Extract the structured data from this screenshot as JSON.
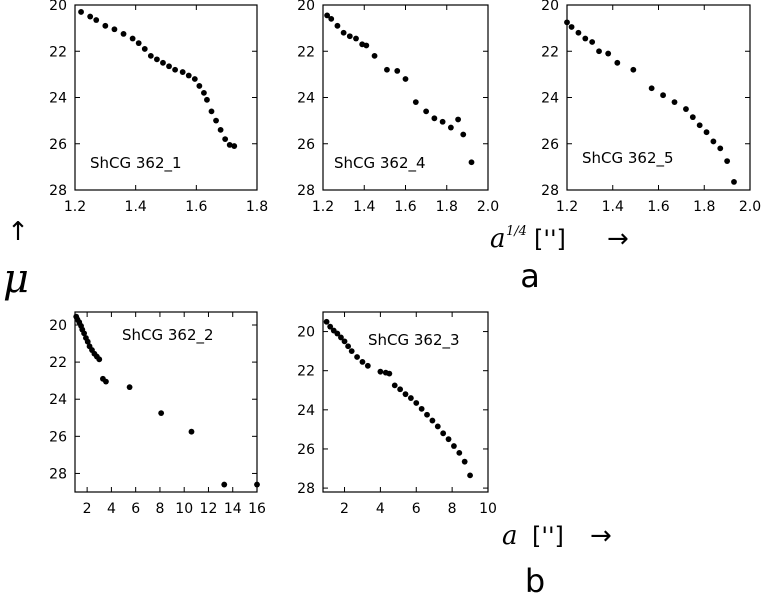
{
  "figure": {
    "y_axis_symbol": "μ",
    "y_axis_arrow": "↑",
    "top_row": {
      "x_axis_symbol": "a",
      "x_axis_exponent": "1/4",
      "x_axis_unit": "['']",
      "x_axis_arrow": "→",
      "group_letter": "a"
    },
    "bottom_row": {
      "x_axis_symbol": "a",
      "x_axis_unit": "['']",
      "x_axis_arrow": "→",
      "group_letter": "b"
    }
  },
  "chart_data": [
    {
      "type": "scatter",
      "label": "ShCG 362_1",
      "xlim": [
        1.2,
        1.8
      ],
      "ylim": [
        28,
        20
      ],
      "xticks": [
        1.2,
        1.4,
        1.6,
        1.8
      ],
      "xtick_labels": [
        "1.2",
        "1.4",
        "1.6",
        "1.8"
      ],
      "yticks": [
        20,
        22,
        24,
        26,
        28
      ],
      "ytick_labels": [
        "20",
        "22",
        "24",
        "26",
        "28"
      ],
      "x": [
        1.22,
        1.25,
        1.27,
        1.3,
        1.33,
        1.36,
        1.39,
        1.41,
        1.43,
        1.45,
        1.47,
        1.49,
        1.51,
        1.53,
        1.555,
        1.575,
        1.595,
        1.61,
        1.625,
        1.635,
        1.65,
        1.665,
        1.68,
        1.695,
        1.71,
        1.725
      ],
      "y": [
        20.3,
        20.5,
        20.65,
        20.9,
        21.05,
        21.25,
        21.45,
        21.65,
        21.9,
        22.2,
        22.35,
        22.5,
        22.65,
        22.8,
        22.9,
        23.05,
        23.2,
        23.5,
        23.8,
        24.1,
        24.6,
        25.0,
        25.4,
        25.8,
        26.05,
        26.1
      ]
    },
    {
      "type": "scatter",
      "label": "ShCG 362_4",
      "xlim": [
        1.2,
        2.0
      ],
      "ylim": [
        28,
        20
      ],
      "xticks": [
        1.2,
        1.4,
        1.6,
        1.8,
        2.0
      ],
      "xtick_labels": [
        "1.2",
        "1.4",
        "1.6",
        "1.8",
        "2.0"
      ],
      "yticks": [
        20,
        22,
        24,
        26,
        28
      ],
      "ytick_labels": [
        "20",
        "22",
        "24",
        "26",
        "28"
      ],
      "x": [
        1.22,
        1.24,
        1.27,
        1.3,
        1.33,
        1.36,
        1.39,
        1.41,
        1.45,
        1.51,
        1.56,
        1.6,
        1.65,
        1.7,
        1.74,
        1.78,
        1.82,
        1.855,
        1.88,
        1.92
      ],
      "y": [
        20.45,
        20.6,
        20.9,
        21.2,
        21.35,
        21.45,
        21.7,
        21.75,
        22.2,
        22.8,
        22.85,
        23.2,
        24.2,
        24.6,
        24.9,
        25.05,
        25.3,
        24.95,
        25.6,
        26.8
      ]
    },
    {
      "type": "scatter",
      "label": "ShCG 362_5",
      "xlim": [
        1.2,
        2.0
      ],
      "ylim": [
        28,
        20
      ],
      "xticks": [
        1.2,
        1.4,
        1.6,
        1.8,
        2.0
      ],
      "xtick_labels": [
        "1.2",
        "1.4",
        "1.6",
        "1.8",
        "2.0"
      ],
      "yticks": [
        20,
        22,
        24,
        26,
        28
      ],
      "ytick_labels": [
        "20",
        "22",
        "24",
        "26",
        "28"
      ],
      "x": [
        1.2,
        1.22,
        1.25,
        1.28,
        1.31,
        1.34,
        1.38,
        1.42,
        1.49,
        1.57,
        1.62,
        1.67,
        1.72,
        1.75,
        1.78,
        1.81,
        1.84,
        1.87,
        1.9,
        1.93
      ],
      "y": [
        20.75,
        20.95,
        21.2,
        21.45,
        21.6,
        22.0,
        22.1,
        22.5,
        22.8,
        23.6,
        23.9,
        24.2,
        24.5,
        24.85,
        25.2,
        25.5,
        25.9,
        26.2,
        26.75,
        27.65
      ]
    },
    {
      "type": "scatter",
      "label": "ShCG 362_2",
      "xlim": [
        1,
        16
      ],
      "ylim": [
        29,
        19.3
      ],
      "xticks": [
        2,
        4,
        6,
        8,
        10,
        12,
        14,
        16
      ],
      "xtick_labels": [
        "2",
        "4",
        "6",
        "8",
        "10",
        "12",
        "14",
        "16"
      ],
      "yticks": [
        20,
        22,
        24,
        26,
        28
      ],
      "ytick_labels": [
        "20",
        "22",
        "24",
        "26",
        "28"
      ],
      "x": [
        1.1,
        1.2,
        1.35,
        1.5,
        1.6,
        1.75,
        1.9,
        2.05,
        2.2,
        2.4,
        2.6,
        2.8,
        3.0,
        3.3,
        3.55,
        5.5,
        8.1,
        10.6,
        13.3,
        16.0
      ],
      "y": [
        19.55,
        19.7,
        19.85,
        20.05,
        20.25,
        20.45,
        20.7,
        20.9,
        21.15,
        21.35,
        21.55,
        21.7,
        21.85,
        22.9,
        23.05,
        23.35,
        24.75,
        25.75,
        28.6,
        28.6
      ]
    },
    {
      "type": "scatter",
      "label": "ShCG 362_3",
      "xlim": [
        0.8,
        10
      ],
      "ylim": [
        28.2,
        19
      ],
      "xticks": [
        2,
        4,
        6,
        8,
        10
      ],
      "xtick_labels": [
        "2",
        "4",
        "6",
        "8",
        "10"
      ],
      "yticks": [
        20,
        22,
        24,
        26,
        28
      ],
      "ytick_labels": [
        "20",
        "22",
        "24",
        "26",
        "28"
      ],
      "x": [
        1.0,
        1.2,
        1.4,
        1.6,
        1.8,
        2.0,
        2.2,
        2.4,
        2.7,
        3.0,
        3.3,
        4.0,
        4.3,
        4.5,
        4.8,
        5.1,
        5.4,
        5.7,
        6.0,
        6.3,
        6.6,
        6.9,
        7.2,
        7.5,
        7.8,
        8.1,
        8.4,
        8.7,
        9.0
      ],
      "y": [
        19.5,
        19.75,
        19.95,
        20.1,
        20.3,
        20.5,
        20.75,
        21.0,
        21.3,
        21.55,
        21.75,
        22.05,
        22.1,
        22.15,
        22.75,
        22.95,
        23.2,
        23.4,
        23.65,
        23.95,
        24.25,
        24.55,
        24.85,
        25.2,
        25.5,
        25.85,
        26.2,
        26.65,
        27.35
      ]
    }
  ]
}
